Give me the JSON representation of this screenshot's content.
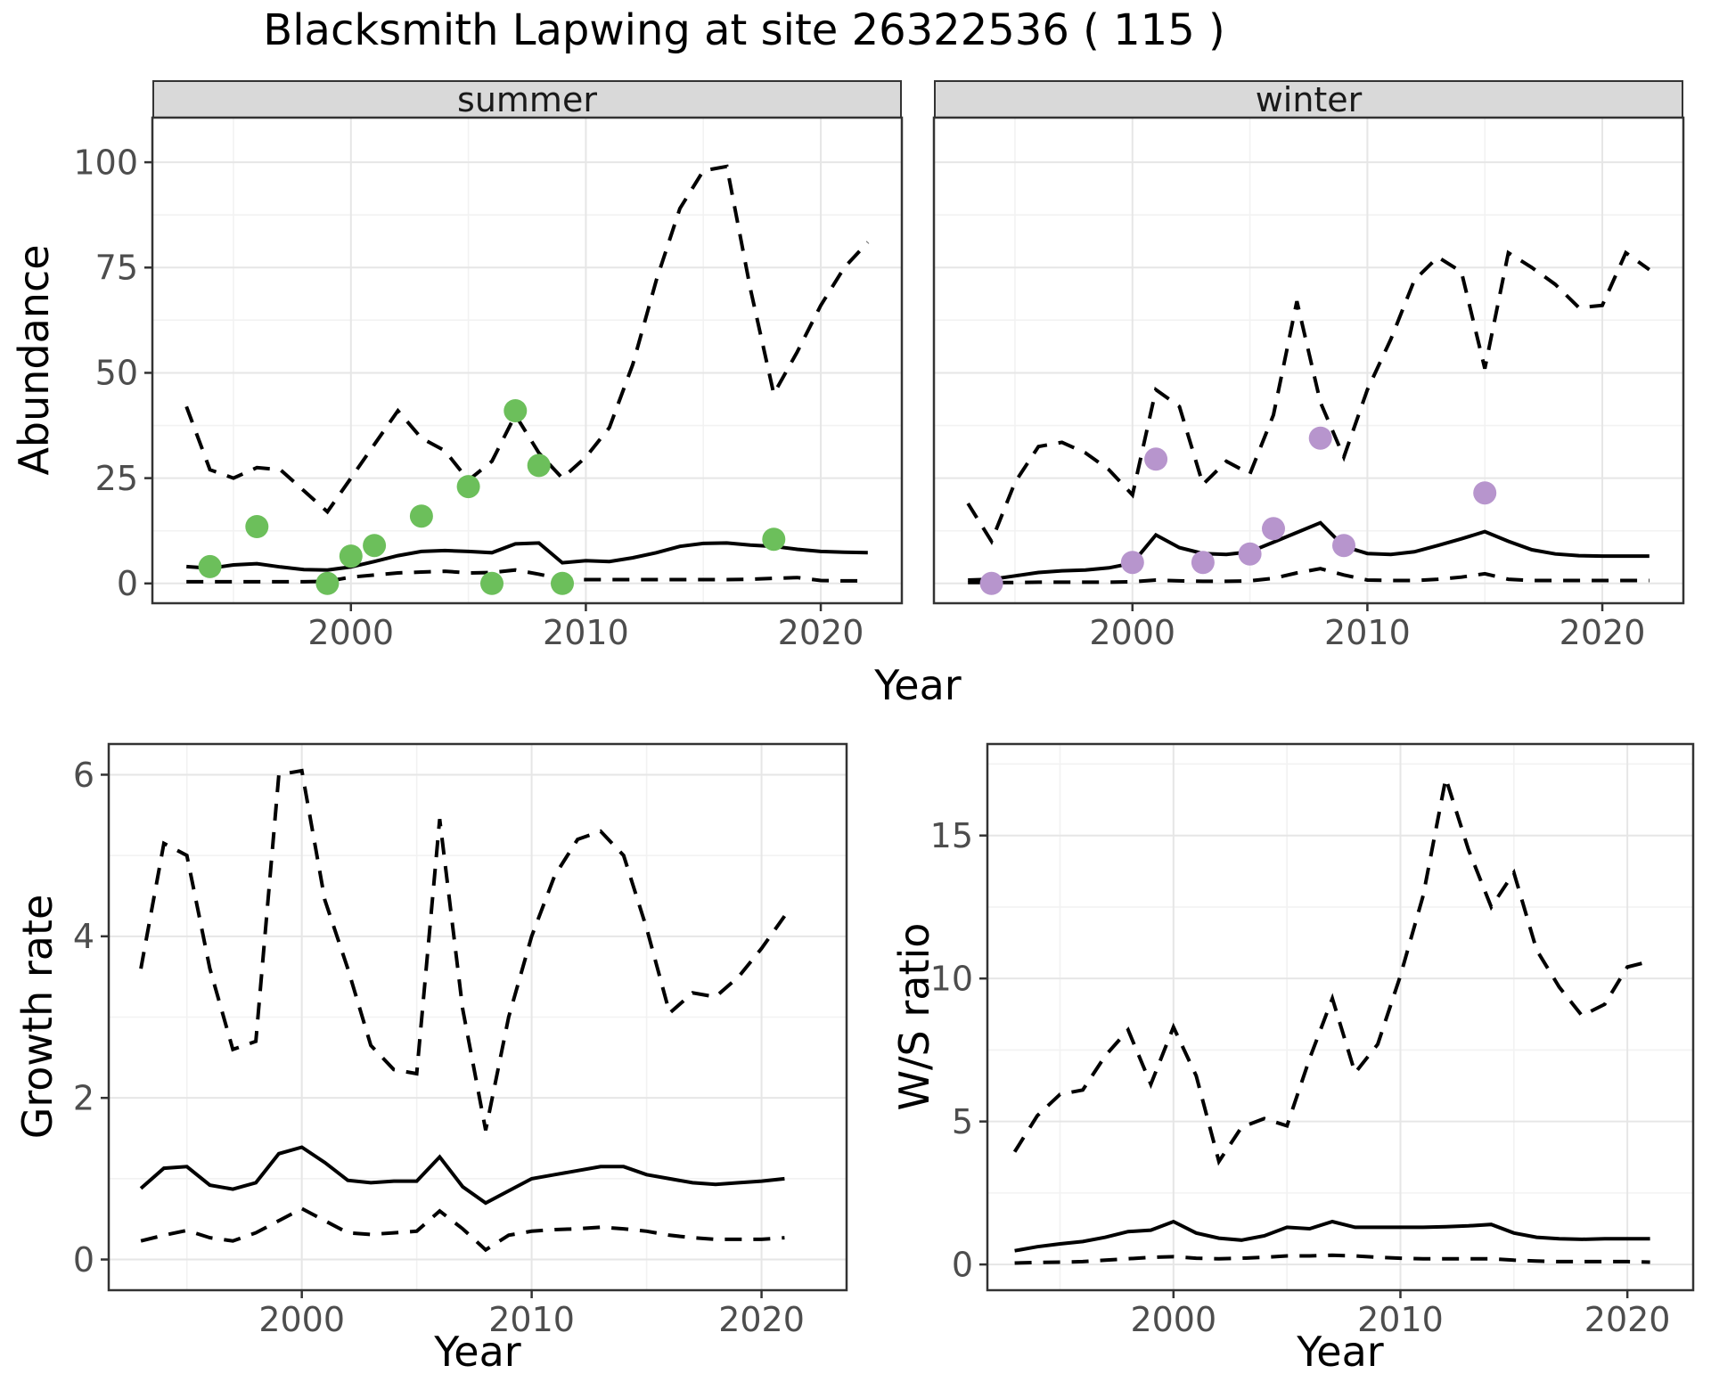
{
  "title": "Blacksmith Lapwing at site 26322536 ( 115 )",
  "colors": {
    "summer_points": "#6cbf5b",
    "winter_points": "#b795cd",
    "line": "#000000",
    "strip_bg": "#d9d9d9",
    "panel_border": "#333333",
    "grid_major": "#e6e6e6",
    "grid_minor": "#f2f2f2",
    "tick_text": "#4d4d4d",
    "tick_mark": "#333333"
  },
  "chart_data": [
    {
      "id": "abundance_summer",
      "type": "line",
      "facet": "summer",
      "xlabel": "Year",
      "ylabel": "Abundance",
      "xlim": [
        1991.55,
        2023.45
      ],
      "ylim": [
        -4.7,
        110.6
      ],
      "xticks": [
        2000,
        2010,
        2020
      ],
      "xticks_minor": [
        1995,
        2005,
        2015
      ],
      "yticks": [
        0,
        25,
        50,
        75,
        100
      ],
      "yticks_minor": [
        12.5,
        37.5,
        62.5,
        87.5
      ],
      "x": [
        1993,
        1994,
        1995,
        1996,
        1997,
        1998,
        1999,
        2000,
        2001,
        2002,
        2003,
        2004,
        2005,
        2006,
        2007,
        2008,
        2009,
        2010,
        2011,
        2012,
        2013,
        2014,
        2015,
        2016,
        2017,
        2018,
        2019,
        2020,
        2021,
        2022
      ],
      "series": [
        {
          "name": "upper_ci",
          "style": "dashed",
          "values": [
            42,
            27,
            25,
            27.5,
            27,
            22,
            17,
            25,
            33,
            41,
            34.5,
            31.5,
            24.5,
            29,
            40,
            31,
            25,
            30,
            37,
            52,
            72,
            89,
            98,
            99,
            70,
            45,
            55,
            66,
            75,
            81
          ]
        },
        {
          "name": "estimate",
          "style": "solid",
          "values": [
            4,
            3.6,
            4.4,
            4.7,
            3.9,
            3.3,
            3.2,
            3.9,
            5.2,
            6.6,
            7.6,
            7.8,
            7.6,
            7.3,
            9.4,
            9.6,
            4.9,
            5.4,
            5.2,
            6.1,
            7.3,
            8.8,
            9.5,
            9.6,
            9.1,
            8.8,
            8.1,
            7.6,
            7.4,
            7.3
          ]
        },
        {
          "name": "lower_ci",
          "style": "dashed",
          "values": [
            0.4,
            0.4,
            0.4,
            0.4,
            0.4,
            0.4,
            0.5,
            1.5,
            2,
            2.5,
            2.7,
            2.9,
            2.5,
            2.6,
            3.2,
            2.2,
            1,
            0.9,
            0.9,
            0.9,
            0.9,
            0.9,
            0.9,
            0.9,
            1,
            1.2,
            1.4,
            0.7,
            0.6,
            0.6
          ]
        }
      ],
      "points": {
        "name": "observed-count",
        "color": "#6cbf5b",
        "data": [
          [
            1994,
            4
          ],
          [
            1996,
            13.5
          ],
          [
            1999,
            0
          ],
          [
            2000,
            6.5
          ],
          [
            2001,
            9
          ],
          [
            2003,
            16
          ],
          [
            2005,
            23
          ],
          [
            2006,
            0
          ],
          [
            2007,
            41
          ],
          [
            2008,
            28
          ],
          [
            2009,
            0
          ],
          [
            2018,
            10.5
          ]
        ]
      }
    },
    {
      "id": "abundance_winter",
      "type": "line",
      "facet": "winter",
      "xlabel": "Year",
      "ylabel": "Abundance",
      "xlim": [
        1991.55,
        2023.45
      ],
      "ylim": [
        -4.7,
        110.6
      ],
      "xticks": [
        2000,
        2010,
        2020
      ],
      "xticks_minor": [
        1995,
        2005,
        2015
      ],
      "yticks": [
        0,
        25,
        50,
        75,
        100
      ],
      "yticks_minor": [
        12.5,
        37.5,
        62.5,
        87.5
      ],
      "x": [
        1993,
        1994,
        1995,
        1996,
        1997,
        1998,
        1999,
        2000,
        2001,
        2002,
        2003,
        2004,
        2005,
        2006,
        2007,
        2008,
        2009,
        2010,
        2011,
        2012,
        2013,
        2014,
        2015,
        2016,
        2017,
        2018,
        2019,
        2020,
        2021,
        2022
      ],
      "series": [
        {
          "name": "upper_ci",
          "style": "dashed",
          "values": [
            19,
            10,
            24,
            32.5,
            33.5,
            31,
            27,
            21,
            46,
            42,
            23.5,
            29,
            26,
            40,
            67,
            43,
            30,
            46,
            58,
            72,
            77.5,
            74,
            51,
            78.5,
            75,
            71,
            65.5,
            66,
            78.5,
            74.5
          ]
        },
        {
          "name": "estimate",
          "style": "solid",
          "values": [
            0.8,
            1,
            1.8,
            2.6,
            3,
            3.2,
            3.7,
            4.8,
            11.5,
            8.5,
            7.1,
            6.9,
            7.5,
            9.8,
            12.1,
            14.4,
            8.8,
            7.1,
            6.9,
            7.5,
            9,
            10.6,
            12.3,
            10,
            8,
            7,
            6.6,
            6.5,
            6.5,
            6.5
          ]
        },
        {
          "name": "lower_ci",
          "style": "dashed",
          "values": [
            0.2,
            0.2,
            0.2,
            0.3,
            0.3,
            0.3,
            0.3,
            0.4,
            0.8,
            0.6,
            0.5,
            0.5,
            0.6,
            1.2,
            2.5,
            3.5,
            2,
            0.8,
            0.7,
            0.7,
            1,
            1.5,
            2.3,
            1,
            0.7,
            0.7,
            0.7,
            0.7,
            0.7,
            0.7
          ]
        }
      ],
      "points": {
        "name": "observed-count",
        "color": "#b795cd",
        "data": [
          [
            1994,
            0
          ],
          [
            2000,
            5
          ],
          [
            2001,
            29.5
          ],
          [
            2003,
            5
          ],
          [
            2005,
            7
          ],
          [
            2006,
            13
          ],
          [
            2008,
            34.5
          ],
          [
            2009,
            9
          ],
          [
            2015,
            21.5
          ]
        ]
      }
    },
    {
      "id": "growth_rate",
      "type": "line",
      "facet": null,
      "xlabel": "Year",
      "ylabel": "Growth rate",
      "xlim": [
        1991.6,
        2023.7
      ],
      "ylim": [
        -0.38,
        6.38
      ],
      "xticks": [
        2000,
        2010,
        2020
      ],
      "xticks_minor": [
        1995,
        2005,
        2015
      ],
      "yticks": [
        0,
        2,
        4,
        6
      ],
      "yticks_minor": [
        1,
        3,
        5
      ],
      "x": [
        1993,
        1994,
        1995,
        1996,
        1997,
        1998,
        1999,
        2000,
        2001,
        2002,
        2003,
        2004,
        2005,
        2006,
        2007,
        2008,
        2009,
        2010,
        2011,
        2012,
        2013,
        2014,
        2015,
        2016,
        2017,
        2018,
        2019,
        2020,
        2021
      ],
      "series": [
        {
          "name": "upper_ci",
          "style": "dashed",
          "values": [
            3.6,
            5.15,
            5,
            3.6,
            2.6,
            2.7,
            6,
            6.05,
            4.45,
            3.6,
            2.65,
            2.35,
            2.3,
            5.45,
            3.1,
            1.6,
            3,
            4,
            4.75,
            5.2,
            5.3,
            5,
            4.1,
            3.05,
            3.3,
            3.25,
            3.5,
            3.85,
            4.25
          ]
        },
        {
          "name": "estimate",
          "style": "solid",
          "values": [
            0.88,
            1.13,
            1.15,
            0.92,
            0.87,
            0.95,
            1.31,
            1.39,
            1.2,
            0.98,
            0.95,
            0.97,
            0.97,
            1.27,
            0.9,
            0.7,
            0.85,
            1,
            1.05,
            1.1,
            1.15,
            1.15,
            1.05,
            1,
            0.95,
            0.93,
            0.95,
            0.97,
            1
          ]
        },
        {
          "name": "lower_ci",
          "style": "dashed",
          "values": [
            0.23,
            0.3,
            0.36,
            0.27,
            0.23,
            0.33,
            0.48,
            0.63,
            0.48,
            0.33,
            0.31,
            0.33,
            0.35,
            0.6,
            0.38,
            0.12,
            0.3,
            0.35,
            0.37,
            0.38,
            0.4,
            0.38,
            0.35,
            0.3,
            0.27,
            0.25,
            0.25,
            0.25,
            0.27
          ]
        }
      ],
      "points": null
    },
    {
      "id": "ws_ratio",
      "type": "line",
      "facet": null,
      "xlabel": "Year",
      "ylabel": "W/S ratio",
      "xlim": [
        1991.8,
        2022.9
      ],
      "ylim": [
        -0.9,
        18.2
      ],
      "xticks": [
        2000,
        2010,
        2020
      ],
      "xticks_minor": [
        1995,
        2005,
        2015
      ],
      "yticks": [
        0,
        5,
        10,
        15
      ],
      "yticks_minor": [
        2.5,
        7.5,
        12.5,
        17.5
      ],
      "x": [
        1993,
        1994,
        1995,
        1996,
        1997,
        1998,
        1999,
        2000,
        2001,
        2002,
        2003,
        2004,
        2005,
        2006,
        2007,
        2008,
        2009,
        2010,
        2011,
        2012,
        2013,
        2014,
        2015,
        2016,
        2017,
        2018,
        2019,
        2020,
        2021
      ],
      "series": [
        {
          "name": "upper_ci",
          "style": "dashed",
          "values": [
            3.94,
            5.2,
            5.95,
            6.1,
            7.3,
            8.2,
            6.3,
            8.3,
            6.6,
            3.6,
            4.8,
            5.1,
            4.85,
            7.2,
            9.3,
            6.7,
            7.7,
            10.1,
            12.9,
            17,
            14.5,
            12.5,
            13.7,
            11,
            9.7,
            8.7,
            9.1,
            10.4,
            10.6
          ]
        },
        {
          "name": "estimate",
          "style": "solid",
          "values": [
            0.48,
            0.62,
            0.72,
            0.8,
            0.95,
            1.15,
            1.2,
            1.5,
            1.1,
            0.92,
            0.85,
            1,
            1.3,
            1.25,
            1.5,
            1.3,
            1.3,
            1.3,
            1.3,
            1.32,
            1.35,
            1.4,
            1.1,
            0.95,
            0.9,
            0.88,
            0.9,
            0.9,
            0.9
          ]
        },
        {
          "name": "lower_ci",
          "style": "dashed",
          "values": [
            0.05,
            0.07,
            0.08,
            0.1,
            0.15,
            0.2,
            0.25,
            0.27,
            0.22,
            0.2,
            0.22,
            0.25,
            0.3,
            0.3,
            0.32,
            0.3,
            0.25,
            0.22,
            0.2,
            0.2,
            0.2,
            0.2,
            0.15,
            0.12,
            0.1,
            0.1,
            0.1,
            0.1,
            0.08
          ]
        }
      ],
      "points": null
    }
  ]
}
